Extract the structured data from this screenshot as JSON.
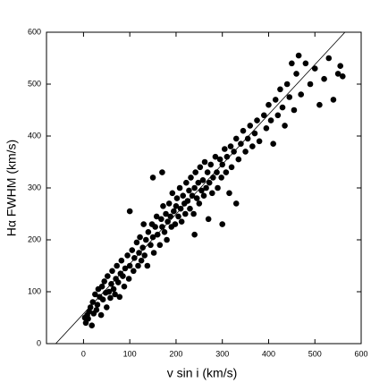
{
  "chart_data": {
    "type": "scatter",
    "x_label": "v sin i (km/s)",
    "y_label": "Hα FWHM (km/s)",
    "xlim": [
      -80,
      600
    ],
    "ylim": [
      0,
      600
    ],
    "xticks": [
      0,
      100,
      200,
      300,
      400,
      500,
      600
    ],
    "yticks": [
      0,
      100,
      200,
      300,
      400,
      500,
      600
    ],
    "color": "#000000",
    "reference_line": {
      "x": [
        -60,
        565
      ],
      "y": [
        0,
        600
      ]
    },
    "x": [
      5,
      8,
      10,
      12,
      15,
      3,
      18,
      20,
      22,
      25,
      28,
      30,
      32,
      35,
      38,
      40,
      42,
      45,
      48,
      50,
      52,
      55,
      58,
      60,
      62,
      65,
      68,
      70,
      72,
      75,
      78,
      80,
      82,
      85,
      88,
      90,
      95,
      98,
      100,
      105,
      108,
      110,
      115,
      118,
      120,
      122,
      125,
      128,
      130,
      132,
      135,
      138,
      140,
      145,
      148,
      150,
      152,
      155,
      158,
      160,
      165,
      168,
      170,
      172,
      175,
      178,
      180,
      182,
      185,
      188,
      190,
      192,
      195,
      198,
      200,
      202,
      205,
      208,
      210,
      212,
      215,
      218,
      220,
      222,
      225,
      228,
      230,
      232,
      235,
      238,
      240,
      242,
      245,
      248,
      250,
      252,
      255,
      258,
      260,
      262,
      265,
      268,
      270,
      272,
      275,
      278,
      280,
      285,
      288,
      290,
      295,
      298,
      300,
      305,
      308,
      310,
      315,
      318,
      320,
      325,
      330,
      335,
      340,
      345,
      350,
      355,
      360,
      365,
      370,
      375,
      380,
      390,
      395,
      400,
      405,
      410,
      415,
      420,
      425,
      430,
      435,
      440,
      445,
      450,
      455,
      460,
      465,
      470,
      480,
      490,
      500,
      510,
      520,
      530,
      540,
      550,
      555,
      560,
      150,
      100,
      170,
      240,
      300,
      330
    ],
    "values": [
      40,
      55,
      48,
      62,
      70,
      50,
      35,
      80,
      58,
      95,
      65,
      75,
      105,
      90,
      55,
      110,
      85,
      120,
      98,
      70,
      130,
      100,
      88,
      115,
      140,
      105,
      95,
      125,
      150,
      118,
      90,
      135,
      160,
      130,
      110,
      145,
      170,
      125,
      150,
      180,
      140,
      165,
      195,
      150,
      175,
      205,
      160,
      185,
      230,
      170,
      200,
      150,
      215,
      190,
      230,
      205,
      175,
      225,
      245,
      210,
      190,
      240,
      225,
      265,
      215,
      250,
      200,
      235,
      270,
      245,
      225,
      290,
      255,
      230,
      265,
      280,
      245,
      300,
      260,
      235,
      285,
      270,
      250,
      310,
      275,
      295,
      260,
      320,
      285,
      250,
      300,
      330,
      280,
      310,
      270,
      340,
      295,
      315,
      285,
      350,
      300,
      330,
      240,
      310,
      345,
      290,
      320,
      360,
      330,
      300,
      355,
      320,
      345,
      375,
      330,
      360,
      290,
      380,
      340,
      370,
      395,
      355,
      385,
      410,
      370,
      395,
      420,
      380,
      405,
      430,
      390,
      440,
      415,
      460,
      430,
      385,
      470,
      440,
      490,
      455,
      420,
      500,
      475,
      540,
      450,
      520,
      555,
      480,
      540,
      500,
      530,
      460,
      510,
      550,
      470,
      520,
      535,
      515,
      320,
      255,
      330,
      210,
      230,
      270
    ]
  }
}
